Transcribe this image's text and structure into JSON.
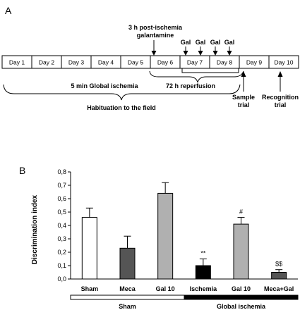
{
  "panel_a": {
    "label": "A",
    "days": [
      "Day 1",
      "Day 2",
      "Day 3",
      "Day 4",
      "Day 5",
      "Day 6",
      "Day 7",
      "Day 8",
      "Day 9",
      "Day 10"
    ],
    "treatment_line1": "3 h post-ischemia",
    "treatment_line2": "galantamine",
    "gal_labels": [
      "Gal",
      "Gal",
      "Gal",
      "Gal"
    ],
    "ischemia_label": "5 min Global ischemia",
    "reperfusion_label": "72 h reperfusion",
    "habituation_label": "Habituation to the field",
    "sample_line1": "Sample",
    "sample_line2": "trial",
    "recognition_line1": "Recognition",
    "recognition_line2": "trial"
  },
  "chart_data": {
    "panel_label": "B",
    "type": "bar",
    "ylabel": "Discrimination index",
    "ylim": [
      0,
      0.8
    ],
    "yticks": [
      "0,0",
      "0,1",
      "0,2",
      "0,3",
      "0,4",
      "0,5",
      "0,6",
      "0,7",
      "0,8"
    ],
    "categories": [
      "Sham",
      "Meca",
      "Gal 10",
      "Ischemia",
      "Gal 10",
      "Meca+Gal"
    ],
    "values": [
      0.46,
      0.23,
      0.64,
      0.1,
      0.41,
      0.05
    ],
    "errors": [
      0.07,
      0.09,
      0.08,
      0.05,
      0.05,
      0.02
    ],
    "bar_colors": [
      "#ffffff",
      "#555555",
      "#b0b0b0",
      "#000000",
      "#b0b0b0",
      "#555555"
    ],
    "annotations": [
      "",
      "",
      "",
      "**",
      "#",
      "$$"
    ],
    "groups": [
      {
        "label": "Sham",
        "fill": "#ffffff"
      },
      {
        "label": "Global ischemia",
        "fill": "#000000"
      }
    ]
  }
}
